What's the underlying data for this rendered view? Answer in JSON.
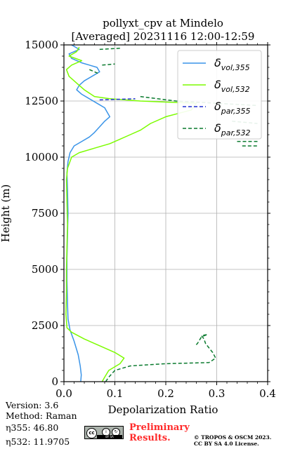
{
  "chart_data": {
    "type": "line",
    "title_line1": "pollyxt_cpv at Mindelo",
    "title_line2": "[Averaged] 20231116 12:00-12:59",
    "xlabel": "Depolarization Ratio",
    "ylabel": "Height (m)",
    "xlim": [
      0,
      0.4
    ],
    "ylim": [
      0,
      15000
    ],
    "xticks": [
      0.0,
      0.1,
      0.2,
      0.3,
      0.4
    ],
    "xtick_labels": [
      "0.0",
      "0.1",
      "0.2",
      "0.3",
      "0.4"
    ],
    "yticks": [
      0,
      2500,
      5000,
      7500,
      10000,
      12500,
      15000
    ],
    "ytick_labels": [
      "0",
      "2500",
      "5000",
      "7500",
      "10000",
      "12500",
      "15000"
    ],
    "grid": true,
    "legend_position": "top-right",
    "series": [
      {
        "name": "δvol,355",
        "legend_base": "δ",
        "legend_sub": "vol,355",
        "color": "#3a94e8",
        "style": "solid",
        "points": [
          [
            0.033,
            0
          ],
          [
            0.034,
            300
          ],
          [
            0.032,
            700
          ],
          [
            0.028,
            1200
          ],
          [
            0.02,
            1800
          ],
          [
            0.012,
            2300
          ],
          [
            0.008,
            2800
          ],
          [
            0.007,
            3500
          ],
          [
            0.006,
            4500
          ],
          [
            0.006,
            5500
          ],
          [
            0.007,
            6500
          ],
          [
            0.008,
            7500
          ],
          [
            0.007,
            8500
          ],
          [
            0.006,
            9300
          ],
          [
            0.008,
            9800
          ],
          [
            0.012,
            10200
          ],
          [
            0.02,
            10500
          ],
          [
            0.035,
            10700
          ],
          [
            0.05,
            10900
          ],
          [
            0.06,
            11100
          ],
          [
            0.07,
            11350
          ],
          [
            0.08,
            11600
          ],
          [
            0.09,
            11800
          ],
          [
            0.085,
            12000
          ],
          [
            0.08,
            12200
          ],
          [
            0.065,
            12400
          ],
          [
            0.05,
            12600
          ],
          [
            0.035,
            12800
          ],
          [
            0.025,
            13000
          ],
          [
            0.03,
            13200
          ],
          [
            0.04,
            13400
          ],
          [
            0.055,
            13600
          ],
          [
            0.07,
            13800
          ],
          [
            0.065,
            14000
          ],
          [
            0.035,
            14200
          ],
          [
            0.015,
            14400
          ],
          [
            0.01,
            14600
          ],
          [
            0.03,
            14800
          ],
          [
            0.015,
            15000
          ]
        ]
      },
      {
        "name": "δvol,532",
        "legend_base": "δ",
        "legend_sub": "vol,532",
        "color": "#7cfc00",
        "style": "solid",
        "points": [
          [
            0.075,
            0
          ],
          [
            0.08,
            200
          ],
          [
            0.088,
            500
          ],
          [
            0.11,
            800
          ],
          [
            0.118,
            1050
          ],
          [
            0.1,
            1300
          ],
          [
            0.07,
            1600
          ],
          [
            0.04,
            1900
          ],
          [
            0.015,
            2200
          ],
          [
            0.006,
            2400
          ],
          [
            0.004,
            3000
          ],
          [
            0.005,
            4000
          ],
          [
            0.005,
            5000
          ],
          [
            0.006,
            6000
          ],
          [
            0.007,
            7000
          ],
          [
            0.006,
            8000
          ],
          [
            0.005,
            9000
          ],
          [
            0.007,
            9500
          ],
          [
            0.015,
            10000
          ],
          [
            0.03,
            10200
          ],
          [
            0.06,
            10400
          ],
          [
            0.09,
            10600
          ],
          [
            0.11,
            10800
          ],
          [
            0.13,
            11000
          ],
          [
            0.15,
            11200
          ],
          [
            0.17,
            11500
          ],
          [
            0.2,
            11800
          ],
          [
            0.25,
            12100
          ],
          [
            0.26,
            12400
          ],
          [
            0.15,
            12500
          ],
          [
            0.09,
            12600
          ],
          [
            0.06,
            12700
          ],
          [
            0.04,
            13000
          ],
          [
            0.025,
            13300
          ],
          [
            0.01,
            13600
          ],
          [
            0.005,
            13900
          ],
          [
            0.015,
            14100
          ],
          [
            0.035,
            14300
          ],
          [
            0.01,
            14500
          ],
          [
            0.025,
            14700
          ],
          [
            0.03,
            14900
          ]
        ]
      },
      {
        "name": "δpar,355",
        "legend_base": "δ",
        "legend_sub": "par,355",
        "color": "#1f2fd0",
        "style": "dashed",
        "points": [
          [
            0.07,
            12550
          ],
          [
            0.14,
            12600
          ]
        ]
      },
      {
        "name": "δpar,532",
        "legend_base": "δ",
        "legend_sub": "par,532",
        "color": "#0a7a2e",
        "style": "dashed",
        "points": [
          [
            0.082,
            0
          ],
          [
            0.088,
            200
          ],
          [
            0.1,
            500
          ],
          [
            0.13,
            700
          ],
          [
            0.2,
            800
          ],
          [
            0.285,
            850
          ],
          [
            0.298,
            1050
          ],
          [
            0.292,
            1300
          ],
          [
            0.285,
            1500
          ],
          [
            0.278,
            1700
          ],
          [
            0.275,
            1900
          ],
          [
            0.27,
            2050
          ],
          [
            0.282,
            2100
          ],
          [
            0.27,
            2000
          ],
          [
            0.265,
            1800
          ],
          [
            0.262,
            1700
          ],
          [
            0.258,
            1600
          ]
        ],
        "upper_segments": [
          [
            [
              0.15,
              12700
            ],
            [
              0.22,
              12500
            ],
            [
              0.3,
              12400
            ],
            [
              0.38,
              12300
            ]
          ],
          [
            [
              0.33,
              11600
            ],
            [
              0.38,
              11500
            ]
          ],
          [
            [
              0.34,
              10700
            ],
            [
              0.38,
              10700
            ]
          ],
          [
            [
              0.35,
              10500
            ],
            [
              0.38,
              10500
            ]
          ],
          [
            [
              0.07,
              14800
            ],
            [
              0.11,
              14850
            ]
          ],
          [
            [
              0.075,
              14100
            ],
            [
              0.1,
              14150
            ]
          ],
          [
            [
              0.05,
              13900
            ],
            [
              0.07,
              13700
            ]
          ]
        ]
      }
    ]
  },
  "footer": {
    "version": "Version: 3.6",
    "method": "Method: Raman",
    "eta355": "η355:  46.80",
    "eta532": "η532: 11.9705",
    "preliminary": "Preliminary Results.",
    "copyright_line1": "© TROPOS & OSCM 2023.",
    "copyright_line2": "CC BY SA 4.0 License."
  },
  "license_badge": {
    "cc": "cc",
    "by": "i",
    "sa": "↻",
    "label": "BY SA"
  }
}
